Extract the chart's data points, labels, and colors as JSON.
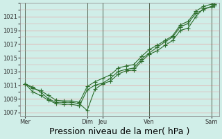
{
  "bg_color": "#d0eee8",
  "line_color": "#2d6e2d",
  "grid_color_h": "#e8a0a0",
  "grid_color_v": "#556655",
  "xlabel": "Pression niveau de la mer( hPa )",
  "xlabel_fontsize": 9,
  "yticks": [
    1007,
    1009,
    1011,
    1013,
    1015,
    1017,
    1019,
    1021
  ],
  "ylim": [
    1006.5,
    1023
  ],
  "xtick_labels": [
    "Mer",
    "Dim",
    "Jeu",
    "Ven",
    "Sam"
  ],
  "xtick_positions": [
    0,
    4,
    5,
    8,
    12
  ],
  "xmax": 12.5,
  "day_lines": [
    0,
    4,
    5,
    8,
    12
  ],
  "series1_x": [
    0,
    0.5,
    1,
    1.5,
    2,
    2.5,
    3,
    3.5,
    4,
    4.5,
    5,
    5.5,
    6,
    6.5,
    7,
    7.5,
    8,
    8.5,
    9,
    9.5,
    10,
    10.5,
    11,
    11.5,
    12,
    12.2
  ],
  "series1_y": [
    1011.2,
    1010.7,
    1010.0,
    1009.0,
    1008.5,
    1008.5,
    1008.5,
    1008.3,
    1007.3,
    1010.4,
    1011.2,
    1011.6,
    1012.6,
    1013.1,
    1013.2,
    1014.5,
    1015.5,
    1016.0,
    1016.8,
    1017.5,
    1019.0,
    1019.3,
    1021.0,
    1022.2,
    1022.4,
    1022.6
  ],
  "series2_x": [
    0,
    0.5,
    1,
    1.5,
    2,
    2.5,
    3,
    3.5,
    4,
    4.5,
    5,
    5.5,
    6,
    6.5,
    7,
    7.5,
    8,
    8.5,
    9,
    9.5,
    10,
    10.5,
    11,
    11.5,
    12,
    12.2
  ],
  "series2_y": [
    1011.2,
    1010.0,
    1009.5,
    1008.8,
    1008.3,
    1008.2,
    1008.2,
    1008.0,
    1010.3,
    1011.0,
    1011.3,
    1012.0,
    1013.0,
    1013.3,
    1013.5,
    1014.8,
    1015.7,
    1016.5,
    1017.3,
    1018.0,
    1019.5,
    1020.0,
    1021.5,
    1022.0,
    1022.5,
    1022.8
  ],
  "series3_x": [
    0,
    0.5,
    1,
    1.5,
    2,
    2.5,
    3,
    3.5,
    4,
    4.5,
    5,
    5.5,
    6,
    6.5,
    7,
    7.5,
    8,
    8.5,
    9,
    9.5,
    10,
    10.5,
    11,
    11.5,
    12,
    12.2
  ],
  "series3_y": [
    1011.2,
    1010.5,
    1010.2,
    1009.5,
    1008.8,
    1008.7,
    1008.7,
    1008.5,
    1010.8,
    1011.5,
    1012.0,
    1012.5,
    1013.5,
    1013.8,
    1014.0,
    1015.2,
    1016.2,
    1016.8,
    1017.5,
    1018.2,
    1019.8,
    1020.3,
    1021.8,
    1022.5,
    1022.8,
    1023.0
  ]
}
